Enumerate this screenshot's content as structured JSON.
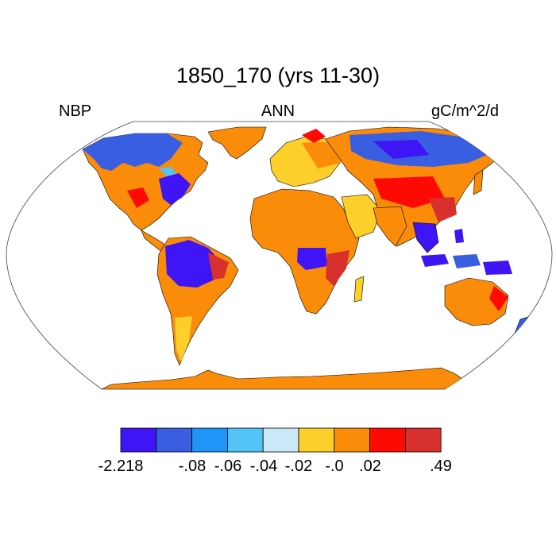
{
  "title": "1850_170 (yrs 11-30)",
  "subtitle_left": "NBP",
  "subtitle_center": "ANN",
  "subtitle_right": "gC/m^2/d",
  "colorbar": {
    "colors": [
      "#3f14f5",
      "#3a5ee2",
      "#1e96f7",
      "#52c4f7",
      "#cbe8f9",
      "#fdcf2a",
      "#fb8c0a",
      "#fd0a05",
      "#d8302c"
    ],
    "labels": [
      "-2.218",
      "-.08",
      "-.06",
      "-.04",
      "-.02",
      "-.0",
      ".02",
      ".49"
    ]
  },
  "map_legend_colors": {
    "ocean": "#ffffff",
    "coastline": "#000000"
  }
}
